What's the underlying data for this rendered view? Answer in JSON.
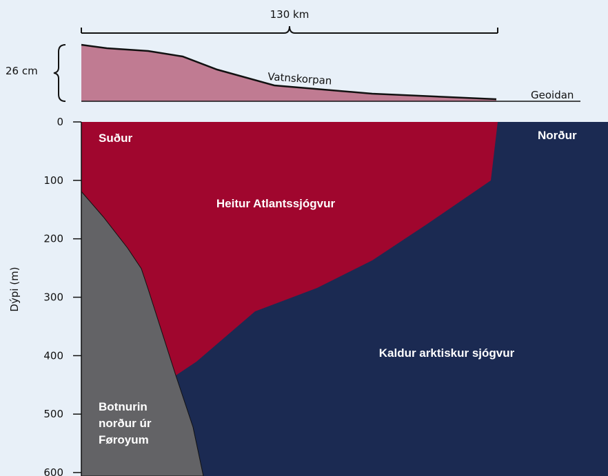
{
  "top": {
    "distance": "130 km",
    "height": "26 cm",
    "surface": "Vatnskorpan",
    "reference": "Geoidan"
  },
  "axis": {
    "label": "Dýpi (m)",
    "ticks": [
      "0",
      "100",
      "200",
      "300",
      "400",
      "500",
      "600"
    ]
  },
  "regions": {
    "south": "Suður",
    "north": "Norður",
    "warm": "Heitur Atlantssjógvur",
    "cold": "Kaldur arktiskur sjógvur",
    "bottom": [
      "Botnurin",
      "norður úr",
      "Føroyum"
    ]
  }
}
